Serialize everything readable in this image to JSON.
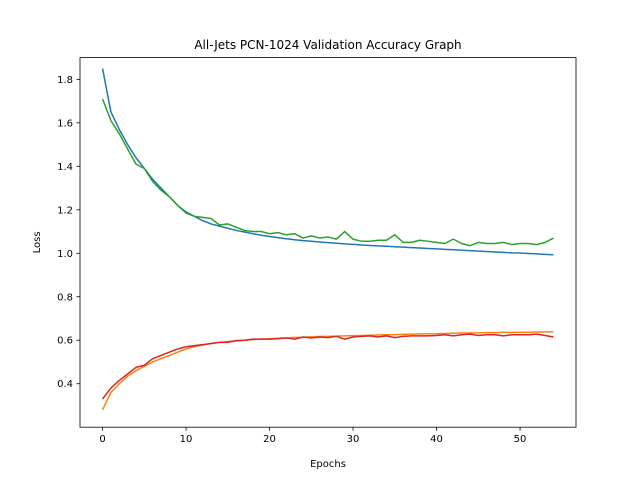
{
  "chart_data": {
    "type": "line",
    "title": "All-Jets PCN-1024 Validation Accuracy Graph",
    "xlabel": "Epochs",
    "ylabel": "Loss",
    "xlim": [
      -2.7,
      56.7
    ],
    "ylim": [
      0.2,
      1.9
    ],
    "xticks": [
      0,
      10,
      20,
      30,
      40,
      50
    ],
    "yticks": [
      0.4,
      0.6,
      0.8,
      1.0,
      1.2,
      1.4,
      1.6,
      1.8
    ],
    "grid": false,
    "legend": "none",
    "series": [
      {
        "color": "#1f77b4",
        "x": [
          0,
          1,
          2,
          3,
          4,
          5,
          6,
          7,
          8,
          9,
          10,
          11,
          12,
          13,
          14,
          15,
          16,
          17,
          18,
          19,
          20,
          21,
          22,
          23,
          24,
          25,
          26,
          27,
          28,
          29,
          30,
          31,
          32,
          33,
          34,
          35,
          36,
          37,
          38,
          39,
          40,
          41,
          42,
          43,
          44,
          45,
          46,
          47,
          48,
          49,
          50,
          51,
          52,
          53,
          54
        ],
        "y": [
          1.85,
          1.65,
          1.57,
          1.5,
          1.44,
          1.39,
          1.34,
          1.3,
          1.26,
          1.22,
          1.19,
          1.17,
          1.15,
          1.135,
          1.125,
          1.115,
          1.105,
          1.098,
          1.09,
          1.083,
          1.077,
          1.072,
          1.067,
          1.062,
          1.058,
          1.055,
          1.052,
          1.049,
          1.046,
          1.043,
          1.041,
          1.038,
          1.036,
          1.034,
          1.032,
          1.03,
          1.028,
          1.026,
          1.024,
          1.022,
          1.02,
          1.018,
          1.016,
          1.014,
          1.012,
          1.01,
          1.008,
          1.006,
          1.004,
          1.002,
          1.001,
          0.999,
          0.997,
          0.995,
          0.993
        ]
      },
      {
        "color": "#ff7f0e",
        "x": [
          0,
          1,
          2,
          3,
          4,
          5,
          6,
          7,
          8,
          9,
          10,
          11,
          12,
          13,
          14,
          15,
          16,
          17,
          18,
          19,
          20,
          21,
          22,
          23,
          24,
          25,
          26,
          27,
          28,
          29,
          30,
          31,
          32,
          33,
          34,
          35,
          36,
          37,
          38,
          39,
          40,
          41,
          42,
          43,
          44,
          45,
          46,
          47,
          48,
          49,
          50,
          51,
          52,
          53,
          54
        ],
        "y": [
          0.28,
          0.36,
          0.4,
          0.435,
          0.46,
          0.48,
          0.5,
          0.515,
          0.53,
          0.545,
          0.56,
          0.57,
          0.578,
          0.585,
          0.59,
          0.594,
          0.597,
          0.6,
          0.603,
          0.605,
          0.607,
          0.609,
          0.611,
          0.613,
          0.614,
          0.616,
          0.617,
          0.618,
          0.619,
          0.62,
          0.621,
          0.622,
          0.623,
          0.624,
          0.625,
          0.626,
          0.627,
          0.628,
          0.629,
          0.629,
          0.63,
          0.631,
          0.632,
          0.633,
          0.633,
          0.634,
          0.635,
          0.635,
          0.636,
          0.636,
          0.637,
          0.637,
          0.638,
          0.638,
          0.639
        ]
      },
      {
        "color": "#2ca02c",
        "x": [
          0,
          1,
          2,
          3,
          4,
          5,
          6,
          7,
          8,
          9,
          10,
          11,
          12,
          13,
          14,
          15,
          16,
          17,
          18,
          19,
          20,
          21,
          22,
          23,
          24,
          25,
          26,
          27,
          28,
          29,
          30,
          31,
          32,
          33,
          34,
          35,
          36,
          37,
          38,
          39,
          40,
          41,
          42,
          43,
          44,
          45,
          46,
          47,
          48,
          49,
          50,
          51,
          52,
          53,
          54
        ],
        "y": [
          1.71,
          1.61,
          1.55,
          1.48,
          1.41,
          1.39,
          1.33,
          1.29,
          1.26,
          1.22,
          1.185,
          1.17,
          1.165,
          1.16,
          1.13,
          1.135,
          1.12,
          1.105,
          1.1,
          1.1,
          1.09,
          1.095,
          1.085,
          1.09,
          1.07,
          1.08,
          1.07,
          1.075,
          1.065,
          1.1,
          1.065,
          1.055,
          1.055,
          1.06,
          1.06,
          1.085,
          1.05,
          1.05,
          1.06,
          1.055,
          1.05,
          1.045,
          1.065,
          1.045,
          1.035,
          1.05,
          1.045,
          1.045,
          1.05,
          1.04,
          1.045,
          1.045,
          1.04,
          1.05,
          1.07
        ]
      },
      {
        "color": "#d62728",
        "x": [
          0,
          1,
          2,
          3,
          4,
          5,
          6,
          7,
          8,
          9,
          10,
          11,
          12,
          13,
          14,
          15,
          16,
          17,
          18,
          19,
          20,
          21,
          22,
          23,
          24,
          25,
          26,
          27,
          28,
          29,
          30,
          31,
          32,
          33,
          34,
          35,
          36,
          37,
          38,
          39,
          40,
          41,
          42,
          43,
          44,
          45,
          46,
          47,
          48,
          49,
          50,
          51,
          52,
          53,
          54
        ],
        "y": [
          0.33,
          0.38,
          0.415,
          0.445,
          0.475,
          0.485,
          0.515,
          0.53,
          0.545,
          0.56,
          0.57,
          0.575,
          0.58,
          0.585,
          0.59,
          0.59,
          0.598,
          0.6,
          0.605,
          0.605,
          0.605,
          0.607,
          0.61,
          0.605,
          0.615,
          0.61,
          0.615,
          0.612,
          0.618,
          0.605,
          0.615,
          0.618,
          0.62,
          0.615,
          0.62,
          0.612,
          0.618,
          0.62,
          0.62,
          0.62,
          0.622,
          0.625,
          0.62,
          0.625,
          0.628,
          0.622,
          0.625,
          0.625,
          0.62,
          0.625,
          0.625,
          0.625,
          0.628,
          0.622,
          0.615
        ]
      }
    ]
  }
}
